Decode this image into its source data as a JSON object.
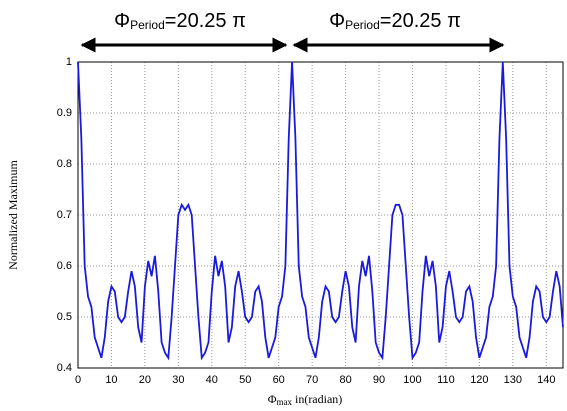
{
  "chart_data": {
    "type": "line",
    "ylabel": "Normalized Maximum",
    "xlabel": {
      "symbol": "Φ",
      "subscript": "max",
      "text": " in(radian)"
    },
    "annotations": [
      {
        "symbol": "Φ",
        "subscript": "Period",
        "text": "=20.25 π"
      },
      {
        "symbol": "Φ",
        "subscript": "Period",
        "text": "=20.25 π"
      }
    ],
    "xlim": [
      0,
      145
    ],
    "ylim": [
      0.4,
      1
    ],
    "xticks": [
      0,
      10,
      20,
      30,
      40,
      50,
      60,
      70,
      80,
      90,
      100,
      110,
      120,
      130,
      140
    ],
    "yticks": [
      0.4,
      0.5,
      0.6,
      0.7,
      0.8,
      0.9,
      1
    ],
    "grid": true,
    "series": [
      {
        "color": "#1a1adc",
        "x": [
          0,
          1,
          2,
          3,
          4,
          5,
          6,
          7,
          8,
          9,
          10,
          11,
          12,
          13,
          14,
          15,
          16,
          17,
          18,
          19,
          20,
          21,
          22,
          23,
          24,
          25,
          26,
          27,
          28,
          29,
          30,
          31,
          32,
          33,
          34,
          35,
          36,
          37,
          38,
          39,
          40,
          41,
          42,
          43,
          44,
          45,
          46,
          47,
          48,
          49,
          50,
          51,
          52,
          53,
          54,
          55,
          56,
          57,
          58,
          59,
          60,
          61,
          62,
          63,
          64,
          65,
          66,
          67,
          68,
          69,
          70,
          71,
          72,
          73,
          74,
          75,
          76,
          77,
          78,
          79,
          80,
          81,
          82,
          83,
          84,
          85,
          86,
          87,
          88,
          89,
          90,
          91,
          92,
          93,
          94,
          95,
          96,
          97,
          98,
          99,
          100,
          101,
          102,
          103,
          104,
          105,
          106,
          107,
          108,
          109,
          110,
          111,
          112,
          113,
          114,
          115,
          116,
          117,
          118,
          119,
          120,
          121,
          122,
          123,
          124,
          125,
          126,
          127,
          128,
          129,
          130,
          131,
          132,
          133,
          134,
          135,
          136,
          137,
          138,
          139,
          140,
          141,
          142,
          143,
          144,
          145
        ],
        "values": [
          1.0,
          0.85,
          0.6,
          0.54,
          0.52,
          0.46,
          0.44,
          0.42,
          0.46,
          0.53,
          0.56,
          0.55,
          0.5,
          0.49,
          0.5,
          0.55,
          0.59,
          0.56,
          0.48,
          0.45,
          0.56,
          0.61,
          0.58,
          0.62,
          0.55,
          0.45,
          0.43,
          0.42,
          0.5,
          0.6,
          0.7,
          0.72,
          0.71,
          0.72,
          0.7,
          0.6,
          0.5,
          0.42,
          0.43,
          0.45,
          0.55,
          0.62,
          0.58,
          0.61,
          0.56,
          0.45,
          0.48,
          0.56,
          0.59,
          0.55,
          0.5,
          0.49,
          0.5,
          0.55,
          0.56,
          0.53,
          0.46,
          0.42,
          0.44,
          0.46,
          0.52,
          0.54,
          0.6,
          0.85,
          1.0,
          0.85,
          0.6,
          0.54,
          0.52,
          0.46,
          0.44,
          0.42,
          0.46,
          0.53,
          0.56,
          0.55,
          0.5,
          0.49,
          0.5,
          0.55,
          0.59,
          0.56,
          0.48,
          0.45,
          0.56,
          0.61,
          0.58,
          0.62,
          0.55,
          0.45,
          0.43,
          0.42,
          0.5,
          0.6,
          0.7,
          0.72,
          0.72,
          0.7,
          0.6,
          0.5,
          0.42,
          0.43,
          0.45,
          0.55,
          0.62,
          0.58,
          0.61,
          0.56,
          0.45,
          0.48,
          0.56,
          0.59,
          0.55,
          0.5,
          0.49,
          0.5,
          0.55,
          0.56,
          0.53,
          0.46,
          0.42,
          0.44,
          0.46,
          0.52,
          0.54,
          0.6,
          0.85,
          1.0,
          0.85,
          0.6,
          0.54,
          0.52,
          0.46,
          0.44,
          0.42,
          0.46,
          0.53,
          0.56,
          0.55,
          0.5,
          0.49,
          0.5,
          0.55,
          0.59,
          0.56,
          0.48
        ]
      }
    ]
  }
}
